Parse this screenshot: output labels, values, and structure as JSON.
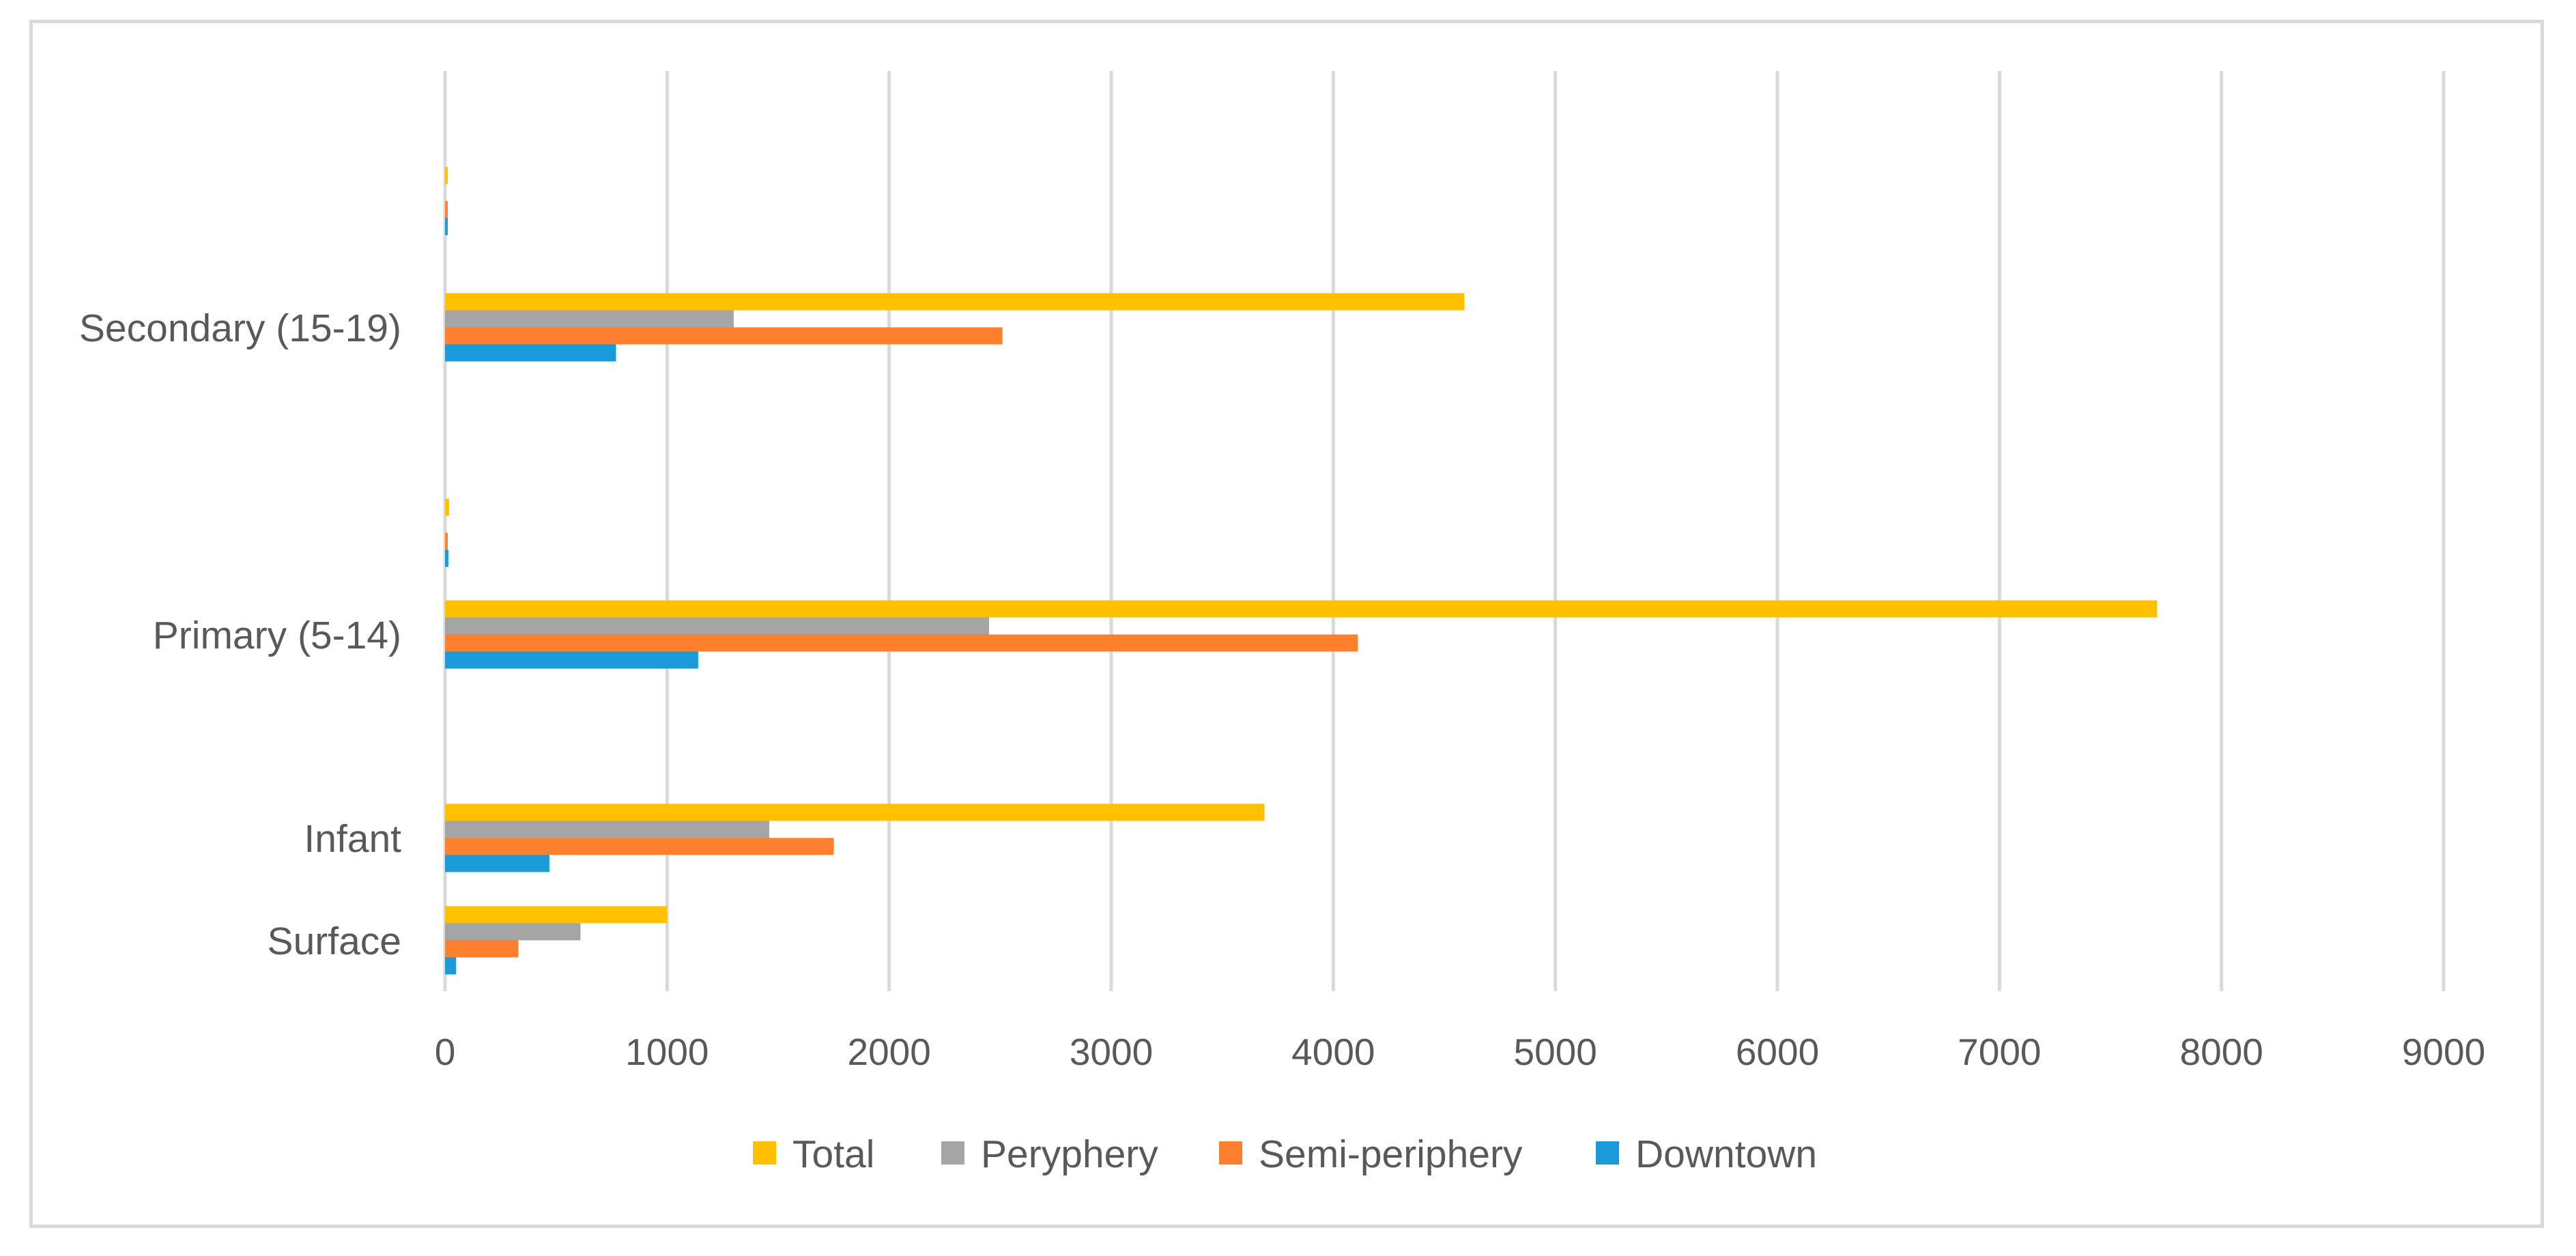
{
  "chart_data": {
    "type": "bar",
    "orientation": "horizontal",
    "categories": [
      "Surface",
      "Infant ",
      "",
      "Primary (5-14)",
      "",
      "Secondary (15-19)",
      ""
    ],
    "series": [
      {
        "name": "Downtown",
        "color": "#1a9bd7",
        "values": [
          50,
          470,
          0,
          1140,
          15,
          770,
          10
        ]
      },
      {
        "name": "Semi-periphery",
        "color": "#fe7f2d",
        "values": [
          330,
          1750,
          0,
          4110,
          8,
          2510,
          8
        ]
      },
      {
        "name": "Peryphery",
        "color": "#a5a5a5",
        "values": [
          610,
          1460,
          0,
          2450,
          0,
          1300,
          0
        ]
      },
      {
        "name": "Total",
        "color": "#ffc000",
        "values": [
          1000,
          3690,
          0,
          7710,
          18,
          4590,
          10
        ]
      }
    ],
    "xticks": [
      "0",
      "1000",
      "2000",
      "3000",
      "4000",
      "5000",
      "6000",
      "7000",
      "8000",
      "9000"
    ],
    "xlim": [
      0,
      9000
    ],
    "grid": true,
    "legend": {
      "position": "bottom",
      "order": [
        "Total",
        "Peryphery",
        "Semi-periphery",
        "Downtown"
      ]
    },
    "title": "",
    "xlabel": "",
    "ylabel": ""
  }
}
